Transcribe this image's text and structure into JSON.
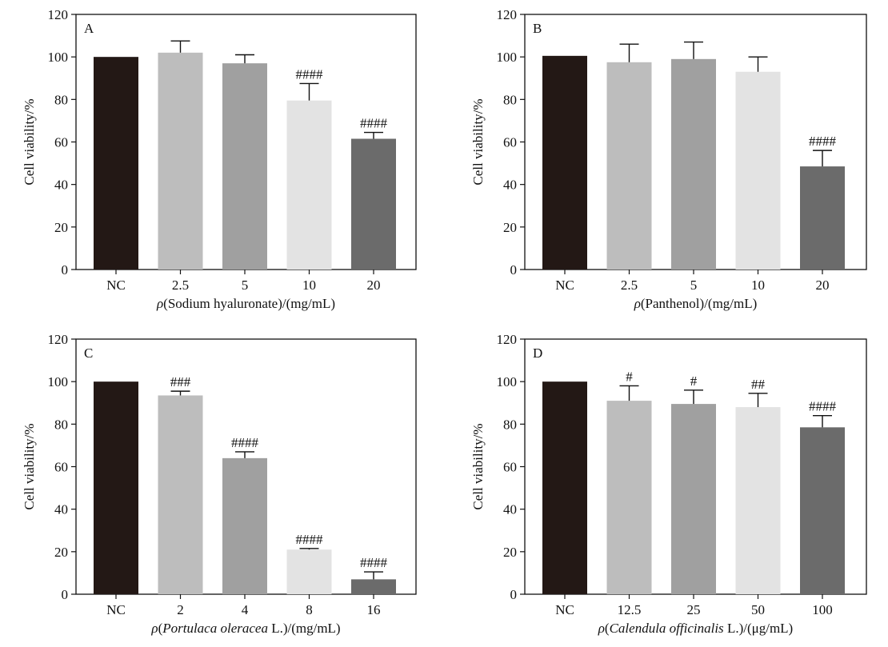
{
  "figure": {
    "panels": [
      "A",
      "B",
      "C",
      "D"
    ]
  },
  "chart_data": [
    {
      "type": "bar",
      "panel": "A",
      "ylabel": "Cell viability/%",
      "xlabel": {
        "prefix": "ρ",
        "body": "(Sodium hyaluronate)",
        "body_italic": "",
        "suffix": "/(mg/mL)"
      },
      "ylim": [
        0,
        120
      ],
      "yticks": [
        "0",
        "20",
        "40",
        "60",
        "80",
        "100",
        "120"
      ],
      "categories": [
        "NC",
        "2.5",
        "5",
        "10",
        "20"
      ],
      "values": [
        100,
        102,
        97,
        79.5,
        61.5
      ],
      "errors": [
        0,
        5.5,
        4,
        8,
        3
      ],
      "significance": [
        "",
        "",
        "",
        "####",
        "####"
      ],
      "colors": [
        "#231815",
        "#bdbdbd",
        "#a0a0a0",
        "#e3e3e3",
        "#6b6b6b"
      ],
      "grid": false
    },
    {
      "type": "bar",
      "panel": "B",
      "ylabel": "Cell viability/%",
      "xlabel": {
        "prefix": "ρ",
        "body": "(Panthenol)",
        "body_italic": "",
        "suffix": "/(mg/mL)"
      },
      "ylim": [
        0,
        120
      ],
      "yticks": [
        "0",
        "20",
        "40",
        "60",
        "80",
        "100",
        "120"
      ],
      "categories": [
        "NC",
        "2.5",
        "5",
        "10",
        "20"
      ],
      "values": [
        100.5,
        97.5,
        99,
        93,
        48.5
      ],
      "errors": [
        0,
        8.5,
        8,
        7,
        7.5
      ],
      "significance": [
        "",
        "",
        "",
        "",
        "####"
      ],
      "colors": [
        "#231815",
        "#bdbdbd",
        "#a0a0a0",
        "#e3e3e3",
        "#6b6b6b"
      ],
      "grid": false
    },
    {
      "type": "bar",
      "panel": "C",
      "ylabel": "Cell viability/%",
      "xlabel": {
        "prefix": "ρ",
        "body": "(",
        "body_italic": "Portulaca oleracea",
        "suffix": " L.)/(mg/mL)"
      },
      "ylim": [
        0,
        120
      ],
      "yticks": [
        "0",
        "20",
        "40",
        "60",
        "80",
        "100",
        "120"
      ],
      "categories": [
        "NC",
        "2",
        "4",
        "8",
        "16"
      ],
      "values": [
        100,
        93.5,
        64,
        21,
        7
      ],
      "errors": [
        0,
        2,
        3,
        0.5,
        3.5
      ],
      "significance": [
        "",
        "###",
        "####",
        "####",
        "####"
      ],
      "colors": [
        "#231815",
        "#bdbdbd",
        "#a0a0a0",
        "#e3e3e3",
        "#6b6b6b"
      ],
      "grid": false
    },
    {
      "type": "bar",
      "panel": "D",
      "ylabel": "Cell viability/%",
      "xlabel": {
        "prefix": "ρ",
        "body": "(",
        "body_italic": "Calendula officinalis",
        "suffix": " L.)/(μg/mL)"
      },
      "ylim": [
        0,
        120
      ],
      "yticks": [
        "0",
        "20",
        "40",
        "60",
        "80",
        "100",
        "120"
      ],
      "categories": [
        "NC",
        "12.5",
        "25",
        "50",
        "100"
      ],
      "values": [
        100,
        91,
        89.5,
        88,
        78.5
      ],
      "errors": [
        0,
        7,
        6.5,
        6.5,
        5.5
      ],
      "significance": [
        "",
        "#",
        "#",
        "##",
        "####"
      ],
      "colors": [
        "#231815",
        "#bdbdbd",
        "#a0a0a0",
        "#e3e3e3",
        "#6b6b6b"
      ],
      "grid": false
    }
  ]
}
